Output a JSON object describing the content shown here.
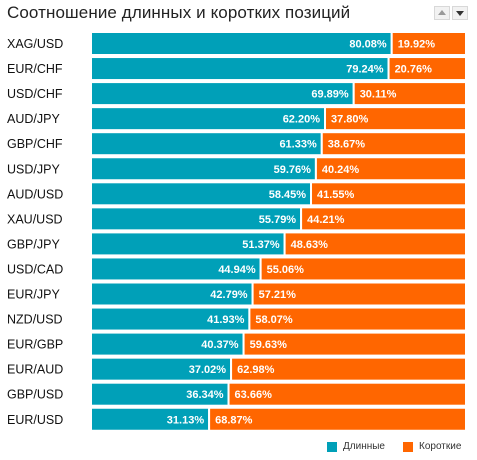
{
  "title": "Соотношение длинных и коротких позиций",
  "controls": {
    "up_icon": "triangle-up-icon",
    "down_icon": "triangle-down-icon"
  },
  "colors": {
    "long": "#00A0B8",
    "short": "#FF6600",
    "gap": "#FFFFFF"
  },
  "legend": {
    "long_label": "Длинные",
    "short_label": "Короткие"
  },
  "chart_data": {
    "type": "bar",
    "orientation": "horizontal",
    "stacked": true,
    "title": "Соотношение длинных и коротких позиций",
    "categories": [
      "XAG/USD",
      "EUR/CHF",
      "USD/CHF",
      "AUD/JPY",
      "GBP/CHF",
      "USD/JPY",
      "AUD/USD",
      "XAU/USD",
      "GBP/JPY",
      "USD/CAD",
      "EUR/JPY",
      "NZD/USD",
      "EUR/GBP",
      "EUR/AUD",
      "GBP/USD",
      "EUR/USD"
    ],
    "series": [
      {
        "name": "Длинные",
        "values": [
          80.08,
          79.24,
          69.89,
          62.2,
          61.33,
          59.76,
          58.45,
          55.79,
          51.37,
          44.94,
          42.79,
          41.93,
          40.37,
          37.02,
          36.34,
          31.13
        ]
      },
      {
        "name": "Короткие",
        "values": [
          19.92,
          20.76,
          30.11,
          37.8,
          38.67,
          40.24,
          41.55,
          44.21,
          48.63,
          55.06,
          57.21,
          58.07,
          59.63,
          62.98,
          63.66,
          68.87
        ]
      }
    ],
    "value_labels": [
      [
        "80.08%",
        "19.92%"
      ],
      [
        "79.24%",
        "20.76%"
      ],
      [
        "69.89%",
        "30.11%"
      ],
      [
        "62.20%",
        "37.80%"
      ],
      [
        "61.33%",
        "38.67%"
      ],
      [
        "59.76%",
        "40.24%"
      ],
      [
        "58.45%",
        "41.55%"
      ],
      [
        "55.79%",
        "44.21%"
      ],
      [
        "51.37%",
        "48.63%"
      ],
      [
        "44.94%",
        "55.06%"
      ],
      [
        "42.79%",
        "57.21%"
      ],
      [
        "41.93%",
        "58.07%"
      ],
      [
        "40.37%",
        "59.63%"
      ],
      [
        "37.02%",
        "62.98%"
      ],
      [
        "36.34%",
        "63.66%"
      ],
      [
        "31.13%",
        "68.87%"
      ]
    ],
    "xlim": [
      0,
      100
    ],
    "grid": false,
    "legend_position": "bottom-right"
  }
}
